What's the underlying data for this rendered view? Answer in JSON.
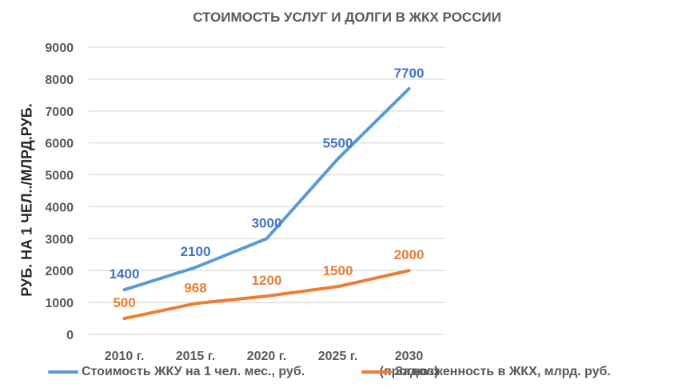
{
  "chart_data": {
    "type": "line",
    "title": "СТОИМОСТЬ УСЛУГ И ДОЛГИ В ЖКХ РОССИИ",
    "xlabel": "",
    "ylabel": "РУБ. НА 1 ЧЕЛ../МЛРД.РУБ.",
    "categories": [
      "2010 г.",
      "2015 г.",
      "2020 г.",
      "2025 г.",
      "2030 (прогноз)"
    ],
    "category_lines": [
      [
        "2010 г."
      ],
      [
        "2015 г."
      ],
      [
        "2020 г."
      ],
      [
        "2025 г."
      ],
      [
        "2030",
        "(прогноз)"
      ]
    ],
    "ylim": [
      0,
      9000
    ],
    "yticks": [
      0,
      1000,
      2000,
      3000,
      4000,
      5000,
      6000,
      7000,
      8000,
      9000
    ],
    "grid": true,
    "legend_position": "bottom",
    "series": [
      {
        "name": "Стоимость ЖКУ на 1 чел. мес., руб.",
        "values": [
          1400,
          2100,
          3000,
          5500,
          7700
        ],
        "color": "#5b9bd5",
        "label_color": "#4472c4"
      },
      {
        "name": "Задолженность в ЖКХ, млрд. руб.",
        "values": [
          500,
          968,
          1200,
          1500,
          2000
        ],
        "color": "#ed7d31",
        "label_color": "#ed7d31"
      }
    ]
  }
}
